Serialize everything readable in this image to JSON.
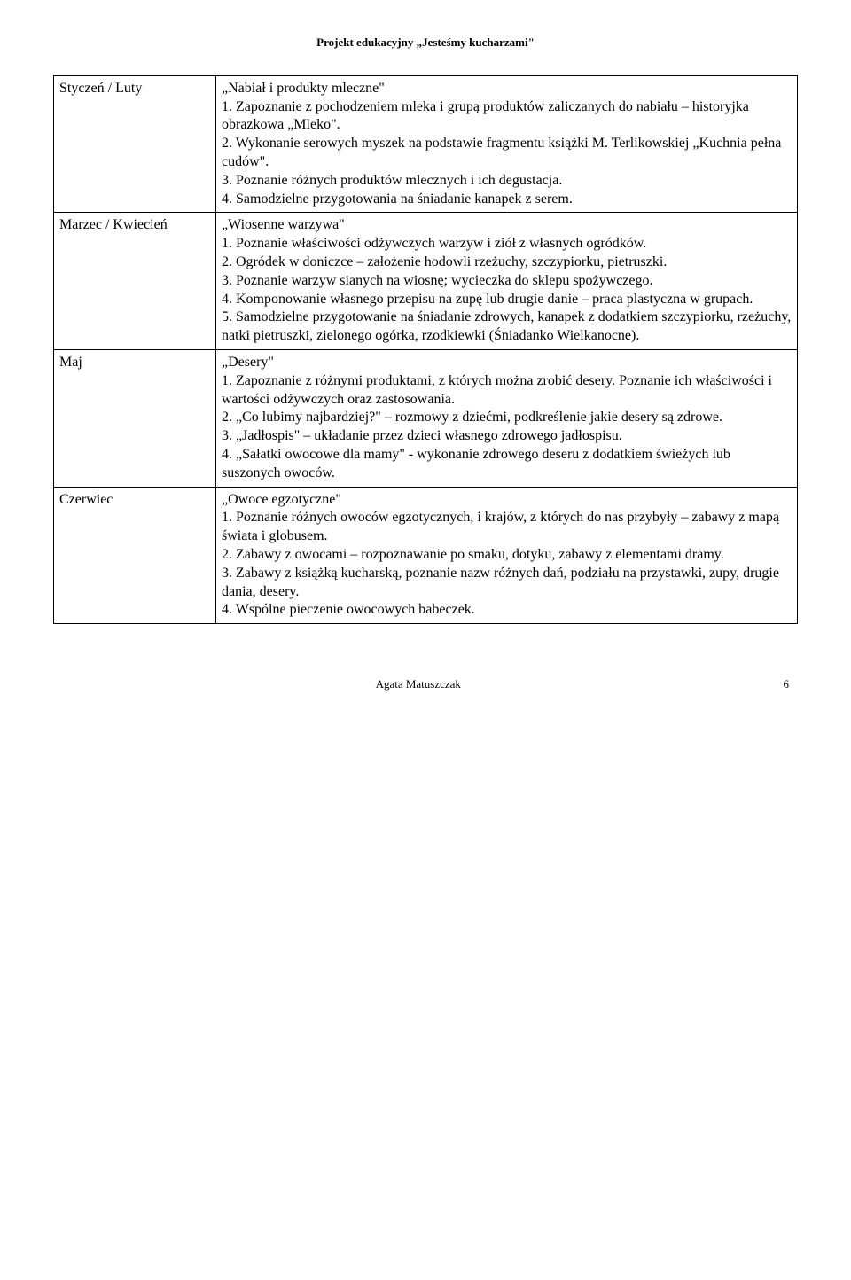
{
  "header": {
    "title": "Projekt edukacyjny „Jesteśmy kucharzami\""
  },
  "rows": [
    {
      "period": "Styczeń / Luty",
      "topic": "„Nabiał i produkty mleczne\"",
      "items": [
        "1.      Zapoznanie z pochodzeniem mleka i grupą produktów zaliczanych do nabiału – historyjka obrazkowa „Mleko\".",
        "2.      Wykonanie serowych myszek na podstawie fragmentu książki M. Terlikowskiej „Kuchnia pełna cudów\".",
        "3.       Poznanie różnych produktów mlecznych i ich degustacja.",
        "4.      Samodzielne przygotowania na śniadanie kanapek z serem."
      ]
    },
    {
      "period": "Marzec / Kwiecień",
      "topic": "„Wiosenne warzywa\"",
      "items": [
        "1.      Poznanie właściwości odżywczych warzyw i ziół z własnych ogródków.",
        "2.      Ogródek w doniczce – założenie hodowli rzeżuchy, szczypiorku, pietruszki.",
        "3.      Poznanie warzyw sianych na wiosnę; wycieczka do sklepu spożywczego.",
        "4.      Komponowanie własnego przepisu na zupę lub drugie danie – praca plastyczna w grupach.",
        "5.      Samodzielne przygotowanie na śniadanie zdrowych, kanapek z dodatkiem szczypiorku, rzeżuchy, natki pietruszki, zielonego ogórka, rzodkiewki (Śniadanko Wielkanocne)."
      ]
    },
    {
      "period": "Maj",
      "topic": "„Desery\"",
      "items": [
        "1.      Zapoznanie z różnymi produktami, z których można zrobić desery. Poznanie ich właściwości i wartości odżywczych oraz zastosowania.",
        "2.      „Co lubimy najbardziej?\" – rozmowy z dziećmi, podkreślenie jakie desery są zdrowe.",
        "3.      „Jadłospis\" – układanie przez dzieci własnego zdrowego jadłospisu.",
        "4.      „Sałatki owocowe dla mamy\" - wykonanie zdrowego deseru z dodatkiem świeżych lub suszonych owoców."
      ]
    },
    {
      "period": "Czerwiec",
      "topic": "„Owoce egzotyczne\"",
      "items": [
        "1.      Poznanie różnych owoców egzotycznych, i krajów, z których do nas przybyły – zabawy z mapą świata i globusem.",
        "2.       Zabawy z owocami – rozpoznawanie po smaku, dotyku, zabawy z elementami dramy.",
        "3.      Zabawy z książką kucharską, poznanie nazw różnych dań, podziału na przystawki, zupy, drugie dania, desery.",
        "4.      Wspólne pieczenie owocowych babeczek."
      ]
    }
  ],
  "footer": {
    "author": "Agata Matuszczak",
    "page": "6"
  }
}
